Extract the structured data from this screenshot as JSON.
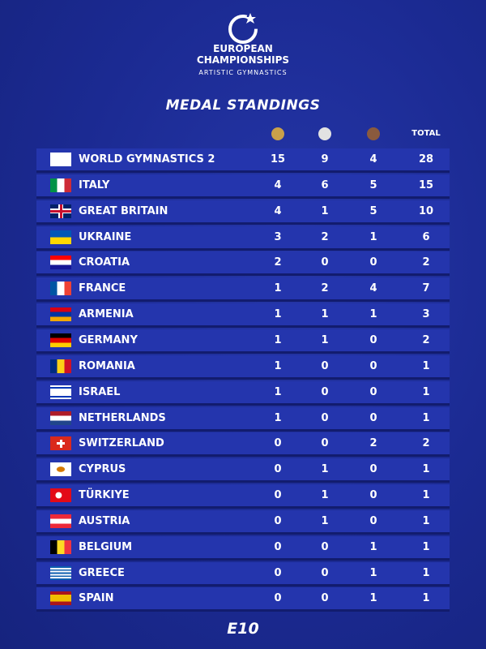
{
  "header": {
    "line1": "EUROPEAN",
    "line2": "CHAMPIONSHIPS",
    "line3": "ARTISTIC GYMNASTICS"
  },
  "title": "MEDAL STANDINGS",
  "table": {
    "total_label": "TOTAL",
    "rows": [
      [
        "WORLD GYMNASTICS 2",
        15,
        9,
        4,
        28
      ],
      [
        "ITALY",
        4,
        6,
        5,
        15
      ],
      [
        "GREAT BRITAIN",
        4,
        1,
        5,
        10
      ],
      [
        "UKRAINE",
        3,
        2,
        1,
        6
      ],
      [
        "CROATIA",
        2,
        0,
        0,
        2
      ],
      [
        "FRANCE",
        1,
        2,
        4,
        7
      ],
      [
        "ARMENIA",
        1,
        1,
        1,
        3
      ],
      [
        "GERMANY",
        1,
        1,
        0,
        2
      ],
      [
        "ROMANIA",
        1,
        0,
        0,
        1
      ],
      [
        "ISRAEL",
        1,
        0,
        0,
        1
      ],
      [
        "NETHERLANDS",
        1,
        0,
        0,
        1
      ],
      [
        "SWITZERLAND",
        0,
        0,
        2,
        2
      ],
      [
        "CYPRUS",
        0,
        1,
        0,
        1
      ],
      [
        "TÜRKIYE",
        0,
        1,
        0,
        1
      ],
      [
        "AUSTRIA",
        0,
        1,
        0,
        1
      ],
      [
        "BELGIUM",
        0,
        0,
        1,
        1
      ],
      [
        "GREECE",
        0,
        0,
        1,
        1
      ],
      [
        "SPAIN",
        0,
        0,
        1,
        1
      ]
    ]
  },
  "footer": "E10"
}
